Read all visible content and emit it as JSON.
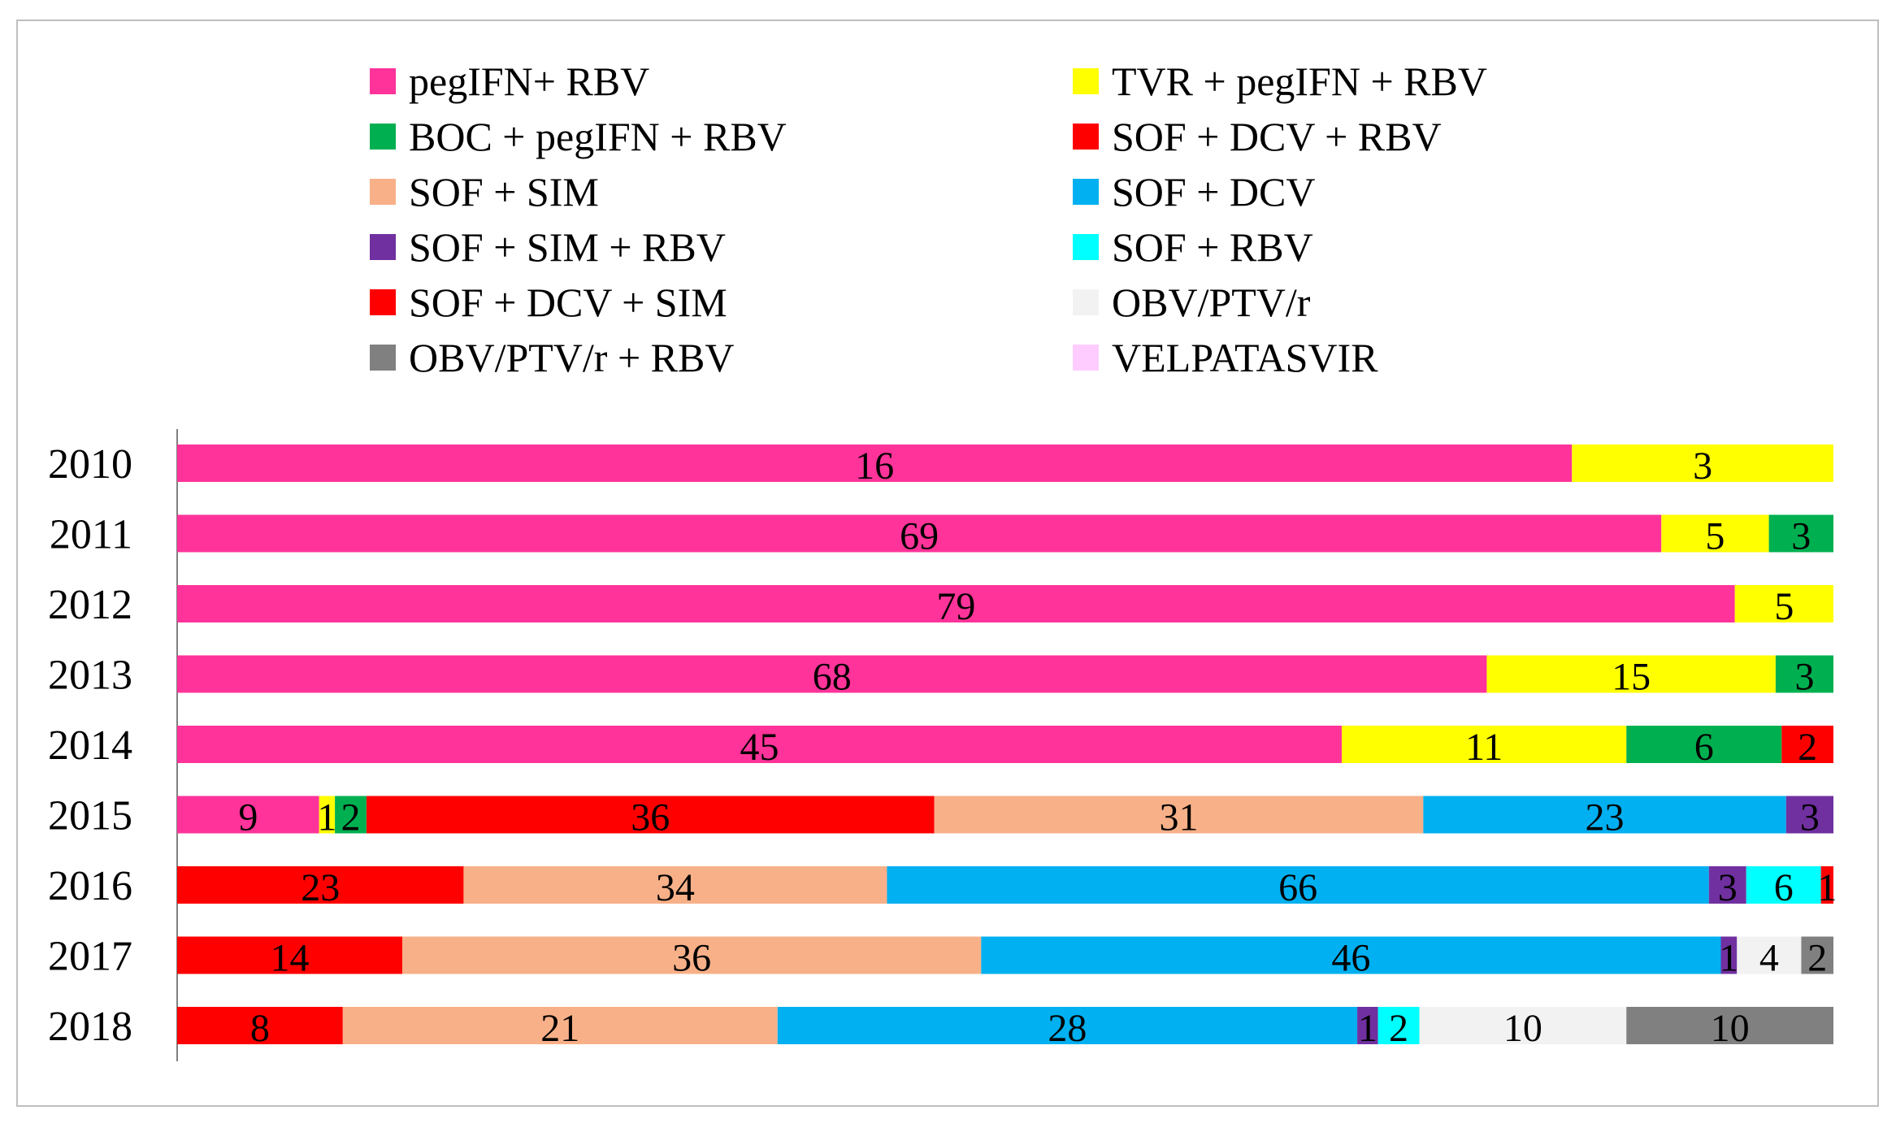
{
  "chart_data": {
    "type": "bar",
    "orientation": "horizontal",
    "stacked": true,
    "normalized": true,
    "title": "",
    "xlabel": "",
    "ylabel": "",
    "grid": false,
    "legend_position": "top",
    "categories": [
      "2010",
      "2011",
      "2012",
      "2013",
      "2014",
      "2015",
      "2016",
      "2017",
      "2018"
    ],
    "series": [
      {
        "name": "pegIFN+ RBV",
        "color": "#ff3399",
        "values": [
          16,
          69,
          79,
          68,
          45,
          9,
          0,
          0,
          0
        ]
      },
      {
        "name": "TVR + pegIFN + RBV",
        "color": "#ffff00",
        "values": [
          3,
          5,
          5,
          15,
          11,
          1,
          0,
          0,
          0
        ]
      },
      {
        "name": "BOC + pegIFN + RBV",
        "color": "#00b050",
        "values": [
          0,
          3,
          0,
          3,
          6,
          2,
          0,
          0,
          0
        ]
      },
      {
        "name": "SOF + DCV + RBV",
        "color": "#ff0000",
        "values": [
          0,
          0,
          0,
          0,
          2,
          0,
          0,
          0,
          0
        ]
      },
      {
        "name": "SOF + DCV + SIM",
        "color": "#ff0000",
        "values": [
          0,
          0,
          0,
          0,
          0,
          36,
          23,
          14,
          8
        ]
      },
      {
        "name": "SOF + SIM",
        "color": "#f8b088",
        "values": [
          0,
          0,
          0,
          0,
          0,
          31,
          34,
          36,
          21
        ]
      },
      {
        "name": "SOF + DCV",
        "color": "#00b0f0",
        "values": [
          0,
          0,
          0,
          0,
          0,
          23,
          66,
          46,
          28
        ]
      },
      {
        "name": "SOF + SIM + RBV",
        "color": "#7030a0",
        "values": [
          0,
          0,
          0,
          0,
          0,
          3,
          3,
          1,
          1
        ]
      },
      {
        "name": "SOF + RBV",
        "color": "#00ffff",
        "values": [
          0,
          0,
          0,
          0,
          0,
          0,
          6,
          0,
          2
        ]
      },
      {
        "name": "VELPATASVIR",
        "color": "#ffccff",
        "values": [
          0,
          0,
          0,
          0,
          0,
          0,
          0,
          0,
          0
        ]
      },
      {
        "name": "SOF + DCV + RBV",
        "color": "#ff0000",
        "values": [
          0,
          0,
          0,
          0,
          0,
          0,
          1,
          0,
          0
        ]
      },
      {
        "name": "OBV/PTV/r",
        "color": "#f2f2f2",
        "values": [
          0,
          0,
          0,
          0,
          0,
          0,
          0,
          4,
          10
        ]
      },
      {
        "name": "OBV/PTV/r + RBV",
        "color": "#808080",
        "values": [
          0,
          0,
          0,
          0,
          0,
          0,
          0,
          2,
          10
        ]
      }
    ],
    "legend": [
      {
        "label": "pegIFN+ RBV",
        "color": "#ff3399"
      },
      {
        "label": "TVR + pegIFN + RBV",
        "color": "#ffff00"
      },
      {
        "label": "BOC + pegIFN + RBV",
        "color": "#00b050"
      },
      {
        "label": "SOF + DCV + RBV",
        "color": "#ff0000"
      },
      {
        "label": "SOF + SIM",
        "color": "#f8b088"
      },
      {
        "label": "SOF + DCV",
        "color": "#00b0f0"
      },
      {
        "label": "SOF + SIM + RBV",
        "color": "#7030a0"
      },
      {
        "label": "SOF + RBV",
        "color": "#00ffff"
      },
      {
        "label": "SOF + DCV + SIM",
        "color": "#ff0000"
      },
      {
        "label": "OBV/PTV/r",
        "color": "#f2f2f2"
      },
      {
        "label": "OBV/PTV/r + RBV",
        "color": "#808080"
      },
      {
        "label": "VELPATASVIR",
        "color": "#ffccff"
      }
    ]
  }
}
